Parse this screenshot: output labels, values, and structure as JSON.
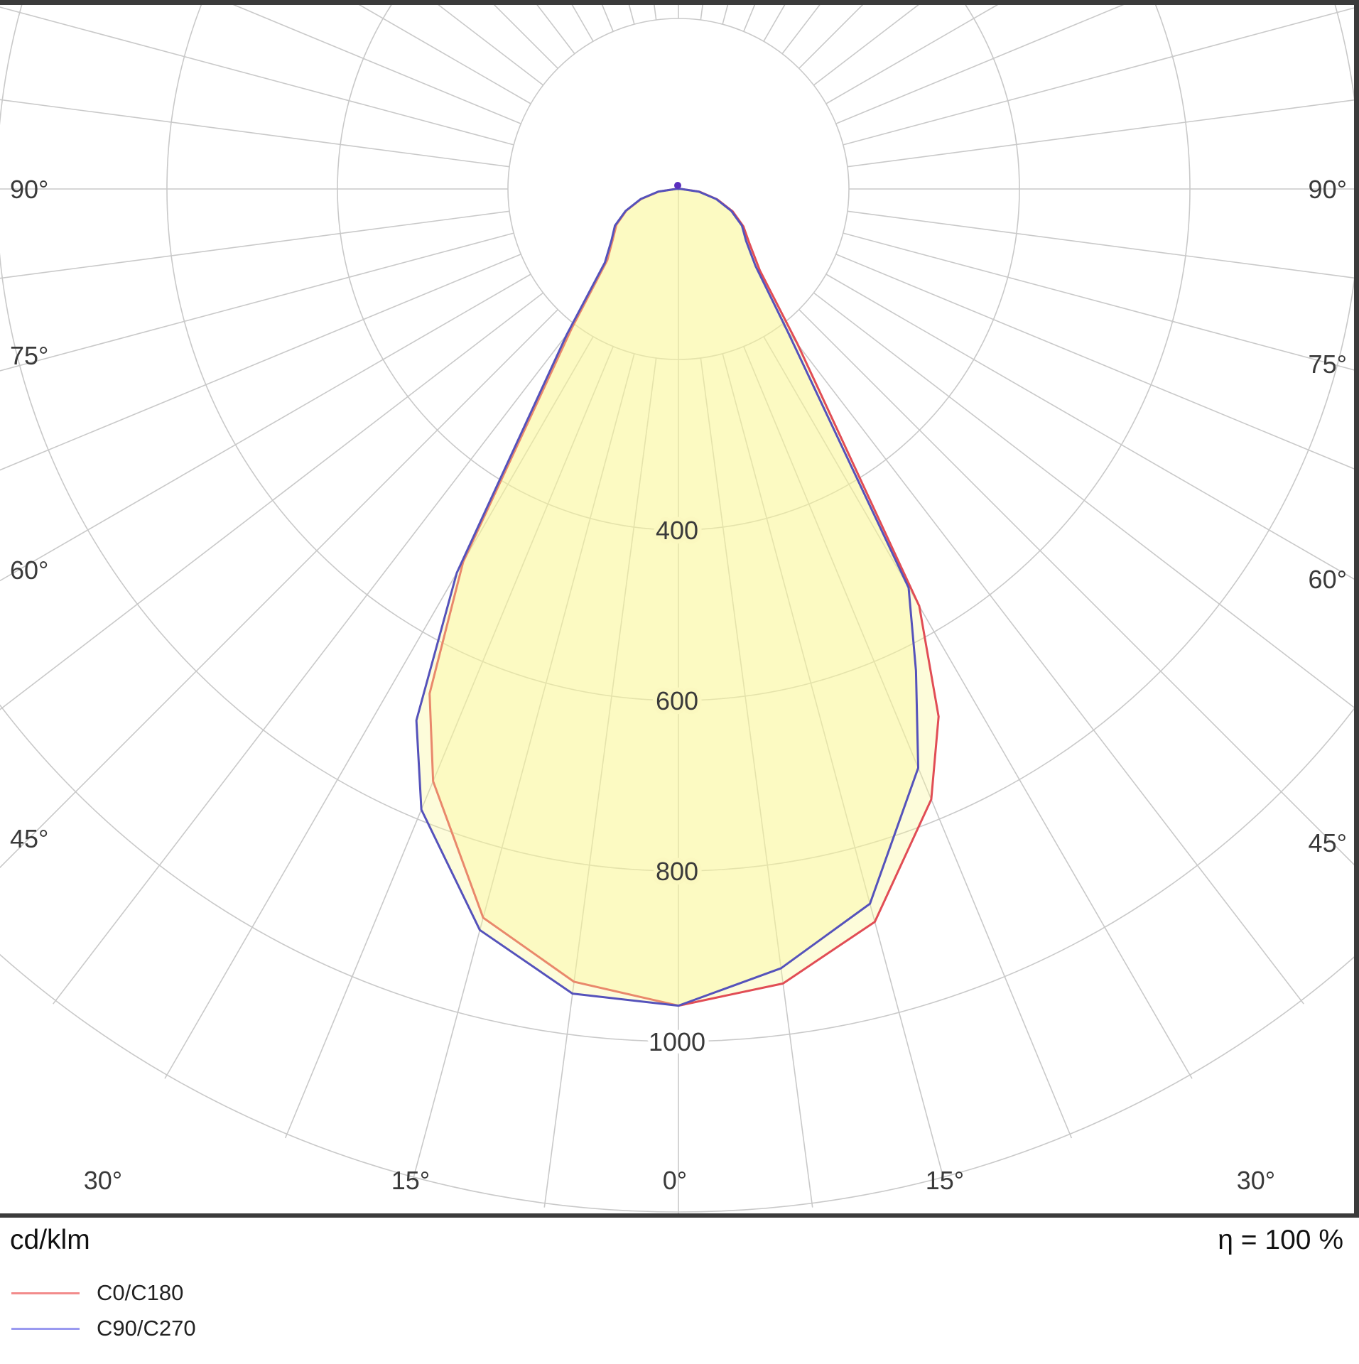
{
  "colors": {
    "grid": "#c9c9c9",
    "text": "#3a3a3a",
    "frame": "#3b3b3b",
    "fill": "rgba(250,247,150,0.35)",
    "origin_dot": "#5b2fbf",
    "background": "#ffffff"
  },
  "labels": {
    "side": [
      "90°",
      "75°",
      "60°",
      "45°"
    ],
    "bottom": [
      "30°",
      "15°",
      "0°",
      "15°",
      "30°"
    ]
  },
  "units_label": "cd/klm",
  "efficiency_label": "η = 100 %",
  "chart_data": {
    "type": "polar_line",
    "title": "Luminous intensity distribution (polar photometric curve)",
    "unit": "cd/klm",
    "efficiency": "η = 100 %",
    "angle_labels_deg": [
      0,
      15,
      30,
      45,
      60,
      75,
      90
    ],
    "angles_deg": [
      0,
      7.5,
      15,
      22.5,
      26.25,
      30,
      37.5,
      45,
      52.5,
      60,
      67.5,
      75,
      82.5,
      90
    ],
    "series": [
      {
        "name": "C0/C180",
        "color": "#e14d55",
        "legend_color": "#f28b8b",
        "right_cd": [
          958,
          940,
          890,
          775,
          690,
          565,
          230,
          135,
          105,
          88,
          69,
          47,
          25,
          3
        ],
        "left_cd": [
          958,
          938,
          885,
          752,
          660,
          505,
          205,
          118,
          97,
          84,
          66,
          45,
          23,
          3
        ]
      },
      {
        "name": "C90/C270",
        "color": "#5552bb",
        "legend_color": "#9a9af0",
        "right_cd": [
          958,
          922,
          868,
          735,
          630,
          540,
          210,
          128,
          100,
          86,
          67,
          46,
          24,
          3
        ],
        "left_cd": [
          958,
          952,
          900,
          788,
          695,
          520,
          215,
          122,
          99,
          86,
          67,
          46,
          24,
          3
        ]
      }
    ],
    "grid": {
      "rings_cd": [
        200,
        400,
        600,
        800,
        1000,
        1200
      ],
      "ring_labels": [
        "400",
        "600",
        "800",
        "1000"
      ],
      "angle_step_deg": 7.5,
      "max_value_cd": 1200,
      "legend_position": "bottom-left"
    }
  }
}
